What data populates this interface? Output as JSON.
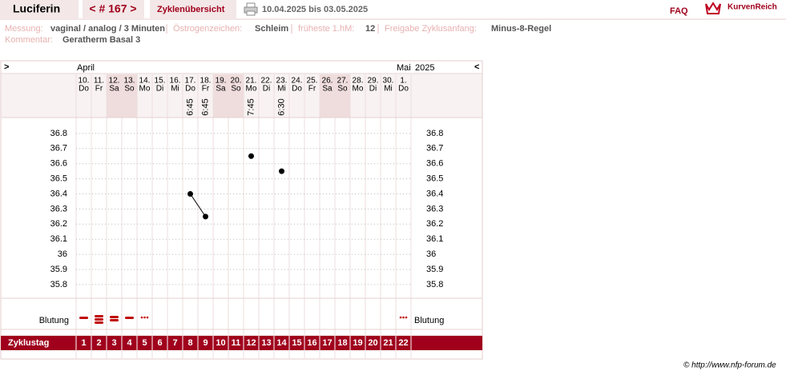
{
  "header": {
    "name": "Luciferin",
    "cycle": "< # 167 >",
    "overview": "Zyklenübersicht",
    "period": "10.04.2025 bis 03.05.2025",
    "faq": "FAQ",
    "logo": "KurvenReich"
  },
  "info": {
    "fields": [
      {
        "label": "Messung:",
        "value": "vaginal / analog / 3 Minuten"
      },
      {
        "label": "Östrogenzeichen:",
        "value": "Schleim"
      },
      {
        "label": "früheste 1.hM:",
        "value": 12
      },
      {
        "label": "Freigabe Zyklusanfang:",
        "value": "Minus-8-Regel"
      }
    ],
    "comment": {
      "label": "Kommentar:",
      "value": "Geratherm Basal 3"
    }
  },
  "chart": {
    "nav_next": ">",
    "nav_prev": "<",
    "year": "2025",
    "months": [
      "April",
      null,
      null,
      null,
      null,
      null,
      null,
      null,
      null,
      null,
      null,
      null,
      null,
      null,
      null,
      null,
      null,
      null,
      null,
      null,
      null,
      "Mai"
    ],
    "dates": [
      "10.",
      "11.",
      "12.",
      "13.",
      "14.",
      "15.",
      "16.",
      "17.",
      "18.",
      "19.",
      "20.",
      "21.",
      "22.",
      "23.",
      "24.",
      "25.",
      "26.",
      "27.",
      "28.",
      "29.",
      "30.",
      "1."
    ],
    "weekdays": [
      "Do",
      "Fr",
      "Sa",
      "So",
      "Mo",
      "Di",
      "Mi",
      "Do",
      "Fr",
      "Sa",
      "So",
      "Mo",
      "Di",
      "Mi",
      "Do",
      "Fr",
      "Sa",
      "So",
      "Mo",
      "Di",
      "Mi",
      "Do"
    ],
    "weekend": [
      false,
      false,
      true,
      true,
      false,
      false,
      false,
      false,
      false,
      true,
      true,
      false,
      false,
      false,
      false,
      false,
      true,
      true,
      false,
      false,
      false,
      false
    ],
    "times": [
      null,
      null,
      null,
      null,
      null,
      null,
      null,
      "6:45",
      "6:45",
      null,
      null,
      "7:45",
      null,
      "6:30",
      null,
      null,
      null,
      null,
      null,
      null,
      null,
      null
    ],
    "temperatures": [
      null,
      null,
      null,
      null,
      null,
      null,
      null,
      36.4,
      36.25,
      null,
      null,
      36.65,
      null,
      36.55,
      null,
      null,
      null,
      null,
      null,
      null,
      null,
      null
    ],
    "ylim": [
      35.7,
      36.9
    ],
    "yticks": [
      36.8,
      36.7,
      36.6,
      36.5,
      36.4,
      36.3,
      36.2,
      36.1,
      36,
      35.9,
      35.8
    ],
    "bleeding_label": "Blutung",
    "bleeding": [
      1,
      3,
      2,
      1,
      0.5,
      null,
      null,
      null,
      null,
      null,
      null,
      null,
      null,
      null,
      null,
      null,
      null,
      null,
      null,
      null,
      null,
      0.5
    ],
    "cycle_day_label": "Zyklustag",
    "cycle_days": [
      1,
      2,
      3,
      4,
      5,
      6,
      7,
      8,
      9,
      10,
      11,
      12,
      13,
      14,
      15,
      16,
      17,
      18,
      19,
      20,
      21,
      22
    ]
  },
  "footer": "© http://www.nfp-forum.de"
}
